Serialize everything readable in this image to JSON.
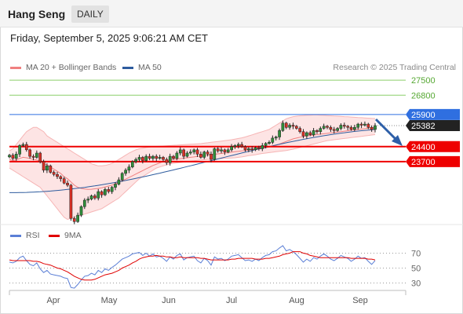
{
  "header": {
    "symbol": "Hang Seng",
    "period": "DAILY"
  },
  "datetime": "Friday, September 5, 2025 9:06:21 AM CET",
  "legend": {
    "bollinger": {
      "label": "MA 20 + Bollinger Bands",
      "color": "#f08080"
    },
    "ma50": {
      "label": "MA 50",
      "color": "#2e5c9e"
    }
  },
  "credit": "Research © 2025 Trading Central",
  "levels": [
    {
      "label": "27500",
      "value": 27500,
      "kind": "resistance",
      "color": "#8ccf6a"
    },
    {
      "label": "26800",
      "value": 26800,
      "kind": "resistance",
      "color": "#8ccf6a"
    },
    {
      "label": "25900",
      "value": 25900,
      "kind": "pivot",
      "color": "#2f6fe0"
    },
    {
      "label": "25382",
      "value": 25382,
      "kind": "last",
      "color": "#222222"
    },
    {
      "label": "24400",
      "value": 24400,
      "kind": "support",
      "color": "#ee0000"
    },
    {
      "label": "23700",
      "value": 23700,
      "kind": "support",
      "color": "#ee0000"
    }
  ],
  "rsi_legend": {
    "rsi": {
      "label": "RSI",
      "color": "#5b7fd6"
    },
    "ma9": {
      "label": "9MA",
      "color": "#e00000"
    }
  },
  "rsi_levels": [
    "70",
    "50",
    "30"
  ],
  "months": [
    "Apr",
    "May",
    "Jun",
    "Jul",
    "Aug",
    "Sep"
  ],
  "chart_data": {
    "type": "candlestick",
    "price_axis_range": [
      20800,
      27800
    ],
    "rsi_axis_range": [
      20,
      80
    ],
    "close": [
      24000,
      23850,
      24050,
      24450,
      24500,
      24250,
      23950,
      23900,
      24100,
      23700,
      23300,
      23500,
      23200,
      23100,
      23000,
      22900,
      22700,
      22600,
      21050,
      20900,
      21200,
      21600,
      21900,
      21950,
      22100,
      22000,
      22300,
      22150,
      22400,
      22300,
      22500,
      22650,
      22850,
      23150,
      23300,
      23450,
      23700,
      23800,
      23900,
      23750,
      23950,
      23850,
      23950,
      23850,
      23900,
      23800,
      23650,
      23950,
      23850,
      24100,
      24250,
      23950,
      24100,
      24150,
      24250,
      24050,
      23900,
      24150,
      24050,
      23800,
      24300,
      24200,
      24250,
      24150,
      24250,
      24400,
      24450,
      24500,
      24400,
      24250,
      24300,
      24250,
      24350,
      24300,
      24450,
      24550,
      24600,
      24800,
      24850,
      25150,
      25500,
      25300,
      25400,
      25350,
      25250,
      25100,
      24900,
      25050,
      24950,
      25150,
      25100,
      25250,
      25350,
      25300,
      25200,
      25150,
      25250,
      25400,
      25350,
      25300,
      25200,
      25300,
      25450,
      25400,
      25450,
      25300,
      25200,
      25380
    ],
    "ma20": [
      23800,
      23750,
      23780,
      23850,
      23900,
      23880,
      23850,
      23800,
      23780,
      23700,
      23600,
      23550,
      23450,
      23350,
      23250,
      23150,
      23000,
      22900,
      22750,
      22600,
      22500,
      22450,
      22420,
      22400,
      22410,
      22430,
      22450,
      22480,
      22520,
      22560,
      22600,
      22660,
      22730,
      22800,
      22880,
      22960,
      23040,
      23120,
      23200,
      23280,
      23360,
      23440,
      23520,
      23580,
      23640,
      23700,
      23740,
      23780,
      23800,
      23820,
      23840,
      23860,
      23880,
      23900,
      23920,
      23940,
      23960,
      23980,
      24000,
      24020,
      24040,
      24060,
      24080,
      24100,
      24120,
      24140,
      24160,
      24180,
      24200,
      24220,
      24240,
      24260,
      24280,
      24300,
      24320,
      24350,
      24380,
      24420,
      24470,
      24520,
      24580,
      24640,
      24700,
      24760,
      24800,
      24840,
      24870,
      24900,
      24920,
      24940,
      24960,
      24980,
      25000,
      25020,
      25040,
      25060,
      25080,
      25100,
      25120,
      25140,
      25160,
      25180,
      25200,
      25220,
      25240,
      25260,
      25280,
      25300
    ],
    "upper_band": [
      24200,
      24300,
      24500,
      24700,
      24900,
      25100,
      25200,
      25300,
      25300,
      25200,
      25100,
      24900,
      24800,
      24700,
      24600,
      24500,
      24400,
      24300,
      24200,
      24100,
      24000,
      23900,
      23800,
      23700,
      23600,
      23550,
      23500,
      23500,
      23520,
      23560,
      23620,
      23700,
      23800,
      23900,
      24000,
      24100,
      24180,
      24250,
      24300,
      24330,
      24360,
      24380,
      24400,
      24410,
      24420,
      24430,
      24440,
      24450,
      24460,
      24470,
      24480,
      24490,
      24500,
      24510,
      24520,
      24530,
      24540,
      24560,
      24580,
      24600,
      24620,
      24640,
      24660,
      24680,
      24700,
      24720,
      24750,
      24780,
      24810,
      24850,
      24900,
      24950,
      25000,
      25050,
      25100,
      25150,
      25200,
      25300,
      25400,
      25500,
      25600,
      25700,
      25750,
      25800,
      25820,
      25840,
      25850,
      25860,
      25870,
      25880,
      25880,
      25870,
      25860,
      25850,
      25840,
      25830,
      25820,
      25810,
      25800,
      25790,
      25780,
      25770,
      25760,
      25750,
      25740,
      25730,
      25720,
      25710
    ],
    "lower_band": [
      23400,
      23300,
      23200,
      23100,
      23000,
      22900,
      22800,
      22700,
      22600,
      22500,
      22300,
      22100,
      21900,
      21700,
      21500,
      21300,
      21100,
      21000,
      21050,
      21100,
      21150,
      21200,
      21250,
      21300,
      21350,
      21400,
      21450,
      21500,
      21600,
      21700,
      21800,
      21900,
      22000,
      22150,
      22300,
      22450,
      22600,
      22750,
      22900,
      23000,
      23100,
      23200,
      23300,
      23400,
      23450,
      23500,
      23550,
      23600,
      23620,
      23640,
      23660,
      23680,
      23700,
      23720,
      23740,
      23760,
      23780,
      23790,
      23800,
      23810,
      23820,
      23830,
      23840,
      23850,
      23860,
      23870,
      23880,
      23900,
      23920,
      23950,
      23980,
      24000,
      24020,
      24050,
      24080,
      24100,
      24120,
      24140,
      24160,
      24180,
      24200,
      24220,
      24250,
      24280,
      24320,
      24360,
      24400,
      24440,
      24480,
      24520,
      24560,
      24600,
      24640,
      24680,
      24700,
      24720,
      24740,
      24760,
      24780,
      24800,
      24820,
      24840,
      24860,
      24880,
      24900,
      24920,
      24940,
      24960
    ],
    "ma50_start": 22250,
    "ma50_end": 25200,
    "rsi": [
      58,
      57,
      59,
      64,
      66,
      60,
      55,
      53,
      57,
      49,
      44,
      47,
      42,
      41,
      40,
      39,
      37,
      36,
      24,
      23,
      28,
      34,
      39,
      40,
      43,
      41,
      47,
      44,
      49,
      47,
      51,
      54,
      58,
      62,
      64,
      66,
      69,
      70,
      71,
      67,
      70,
      66,
      69,
      65,
      66,
      63,
      59,
      65,
      62,
      67,
      69,
      61,
      64,
      65,
      66,
      60,
      57,
      63,
      60,
      54,
      65,
      62,
      63,
      60,
      62,
      66,
      67,
      68,
      64,
      60,
      61,
      59,
      62,
      60,
      64,
      67,
      68,
      72,
      73,
      77,
      80,
      73,
      75,
      72,
      68,
      63,
      58,
      62,
      59,
      64,
      62,
      66,
      69,
      66,
      62,
      60,
      63,
      67,
      65,
      63,
      59,
      62,
      66,
      63,
      64,
      59,
      55,
      60
    ],
    "rsi_ma9": [
      61,
      60,
      60,
      60,
      60,
      60,
      60,
      59,
      59,
      58,
      56,
      55,
      54,
      52,
      50,
      49,
      47,
      45,
      42,
      39,
      37,
      35,
      34,
      34,
      34,
      35,
      37,
      39,
      41,
      42,
      43,
      45,
      47,
      50,
      52,
      54,
      57,
      59,
      62,
      64,
      65,
      66,
      66,
      67,
      66,
      66,
      65,
      65,
      64,
      64,
      65,
      64,
      64,
      64,
      64,
      64,
      63,
      63,
      62,
      61,
      61,
      61,
      61,
      61,
      61,
      62,
      62,
      63,
      63,
      63,
      63,
      63,
      62,
      62,
      62,
      63,
      63,
      64,
      65,
      66,
      68,
      69,
      70,
      72,
      72,
      72,
      70,
      69,
      67,
      66,
      65,
      64,
      64,
      64,
      64,
      64,
      64,
      64,
      64,
      64,
      63,
      63,
      63,
      63,
      63,
      62,
      62,
      61
    ]
  }
}
